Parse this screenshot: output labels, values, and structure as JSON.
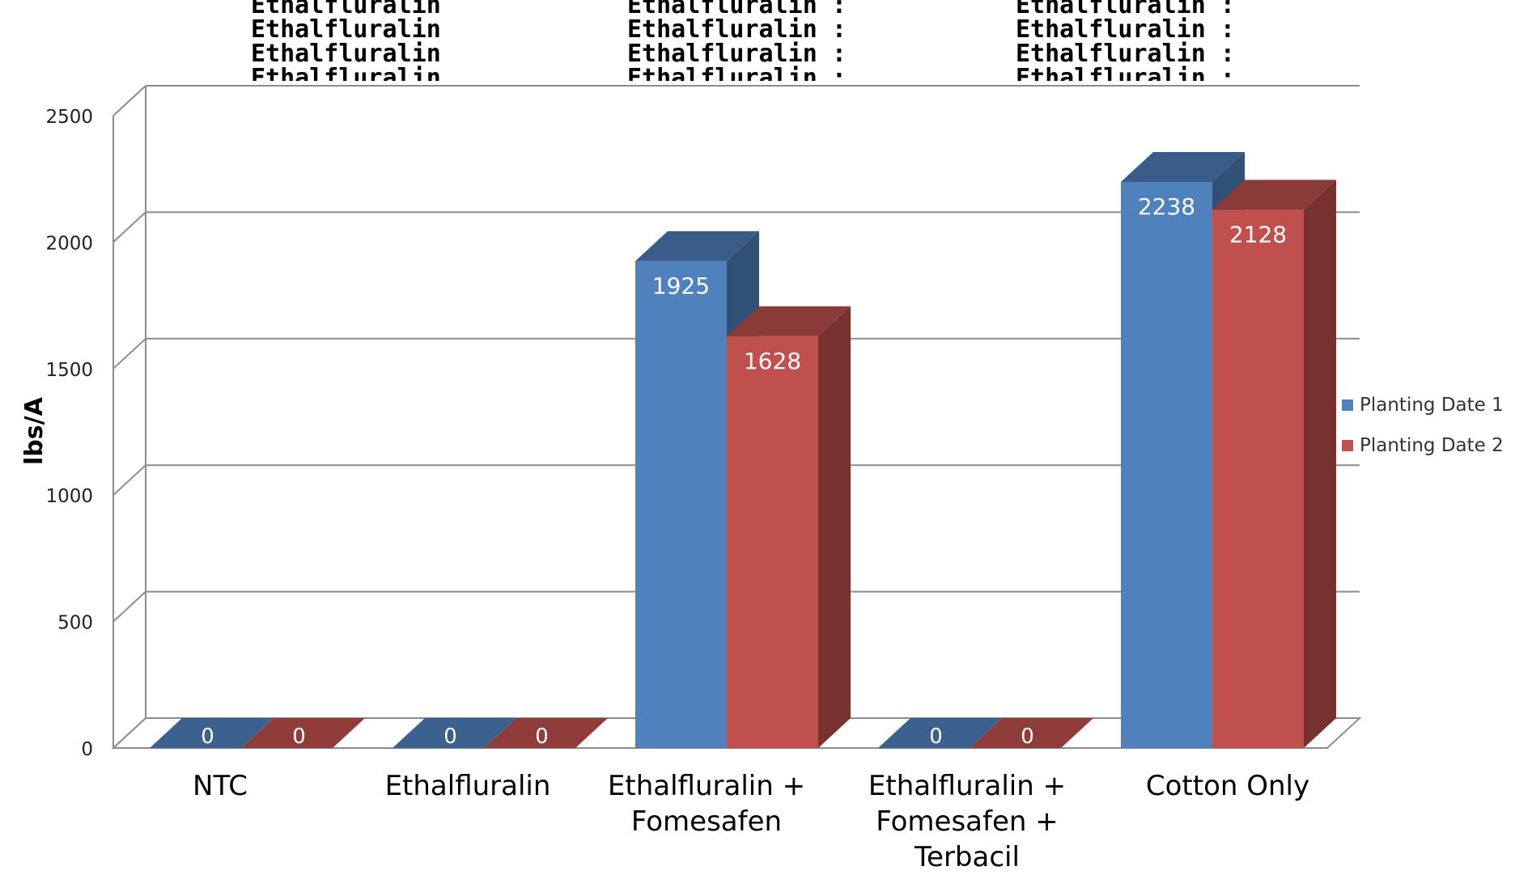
{
  "chart_data": {
    "type": "bar",
    "title": "",
    "xlabel": "",
    "ylabel": "lbs/A",
    "ylim": [
      0,
      2500
    ],
    "yticks": [
      0,
      500,
      1000,
      1500,
      2000,
      2500
    ],
    "categories": [
      "NTC",
      "Ethalfluralin",
      "Ethalfluralin  +\nFomesafen",
      "Ethalfluralin +\nFomesafen  +\nTerbacil",
      "Cotton Only"
    ],
    "series": [
      {
        "name": "Planting Date 1",
        "values": [
          0,
          0,
          1925,
          0,
          2238
        ],
        "color": "#4f81bd"
      },
      {
        "name": "Planting Date 2",
        "values": [
          0,
          0,
          1628,
          0,
          2128
        ],
        "color": "#c0504d"
      }
    ],
    "grid": true,
    "legend_position": "right",
    "three_d": true,
    "top_labels": [
      [
        "Ethalfluralin",
        "Ethalfluralin",
        "Ethalfluralin",
        "Ethalfluralin"
      ],
      [
        "Ethalfluralin :",
        "Ethalfluralin :",
        "Ethalfluralin :",
        "Ethalfluralin :"
      ],
      [
        "Ethalfluralin :",
        "Ethalfluralin :",
        "Ethalfluralin :",
        "Ethalfluralin :"
      ]
    ]
  }
}
